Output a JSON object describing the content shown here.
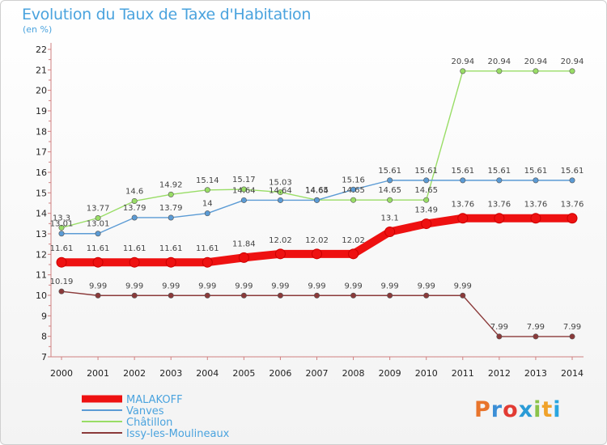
{
  "title": "Evolution du Taux de Taxe d'Habitation",
  "ylabel": "(en %)",
  "logo": {
    "text": "Proxiti",
    "colors": [
      "#e8742b",
      "#3b8ed6",
      "#e23b33",
      "#2a9bd6",
      "#8bc34a",
      "#f0a22a",
      "#2aa6e0"
    ]
  },
  "chart_data": {
    "type": "line",
    "title": "Evolution du Taux de Taxe d'Habitation",
    "ylabel": "(en %)",
    "xlabel": "",
    "x": [
      2000,
      2001,
      2002,
      2003,
      2004,
      2005,
      2006,
      2007,
      2008,
      2009,
      2010,
      2011,
      2012,
      2013,
      2014
    ],
    "ylim": [
      7,
      22
    ],
    "yticks": [
      7,
      8,
      9,
      10,
      11,
      12,
      13,
      14,
      15,
      16,
      17,
      18,
      19,
      20,
      21,
      22
    ],
    "grid": false,
    "legend_position": "bottom-left",
    "series": [
      {
        "name": "MALAKOFF",
        "color": "#ee1111",
        "values": [
          11.61,
          11.61,
          11.61,
          11.61,
          11.61,
          11.84,
          12.02,
          12.02,
          12.02,
          13.1,
          13.49,
          13.76,
          13.76,
          13.76,
          13.76
        ],
        "labels": [
          "11.61",
          "11.61",
          "11.61",
          "11.61",
          "11.61",
          "11.84",
          "12.02",
          "12.02",
          "12.02",
          "13.1",
          "13.49",
          "13.76",
          "13.76",
          "13.76",
          "13.76"
        ],
        "label_offset": -1
      },
      {
        "name": "Vanves",
        "color": "#5b9bd5",
        "values": [
          13.01,
          13.01,
          13.79,
          13.79,
          14,
          14.64,
          14.64,
          14.64,
          15.16,
          15.61,
          15.61,
          15.61,
          15.61,
          15.61,
          15.61
        ],
        "labels": [
          "13.01",
          "13.01",
          "13.79",
          "13.79",
          "14",
          "14.64",
          "14.64",
          "14.64",
          "15.16",
          "15.61",
          "15.61",
          "15.61",
          "15.61",
          "15.61",
          "15.61"
        ],
        "label_offset": -1
      },
      {
        "name": "Châtillon",
        "color": "#99dd66",
        "values": [
          13.3,
          13.77,
          14.6,
          14.92,
          15.14,
          15.17,
          15.03,
          14.65,
          14.65,
          14.65,
          14.65,
          20.94,
          20.94,
          20.94,
          20.94
        ],
        "labels": [
          "13.3",
          "13.77",
          "14.6",
          "14.92",
          "15.14",
          "15.17",
          "15.03",
          "14.65",
          "14.65",
          "14.65",
          "14.65",
          "20.94",
          "20.94",
          "20.94",
          "20.94"
        ],
        "label_offset": -1
      },
      {
        "name": "Issy-les-Moulineaux",
        "color": "#8b3a3a",
        "values": [
          10.19,
          9.99,
          9.99,
          9.99,
          9.99,
          9.99,
          9.99,
          9.99,
          9.99,
          9.99,
          9.99,
          9.99,
          7.99,
          7.99,
          7.99
        ],
        "labels": [
          "10.19",
          "9.99",
          "9.99",
          "9.99",
          "9.99",
          "9.99",
          "9.99",
          "9.99",
          "9.99",
          "9.99",
          "9.99",
          "9.99",
          "7.99",
          "7.99",
          "7.99"
        ],
        "label_offset": -1
      }
    ]
  }
}
